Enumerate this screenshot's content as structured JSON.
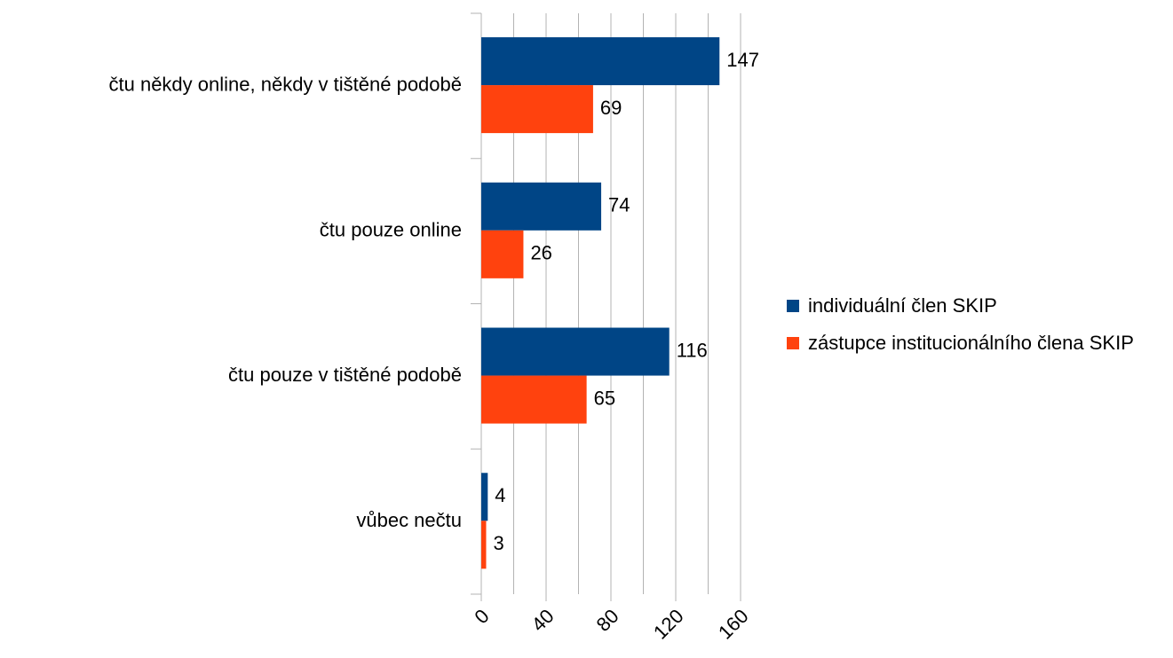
{
  "chart_data": {
    "type": "hbar",
    "categories": [
      "čtu někdy online, někdy v tištěné podobě",
      "čtu pouze online",
      "čtu pouze v tištěné podobě",
      "vůbec nečtu"
    ],
    "series": [
      {
        "name": "individuální člen SKIP",
        "color": "#004586",
        "values": [
          147,
          74,
          116,
          4
        ]
      },
      {
        "name": "zástupce institucionálního člena SKIP",
        "color": "#ff420e",
        "values": [
          69,
          26,
          65,
          3
        ]
      }
    ],
    "xlim": [
      0,
      160
    ],
    "xticks": [
      0,
      40,
      80,
      120,
      160
    ],
    "minor_xticks": [
      20,
      60,
      100,
      140
    ],
    "grid": true,
    "legend": "right"
  }
}
